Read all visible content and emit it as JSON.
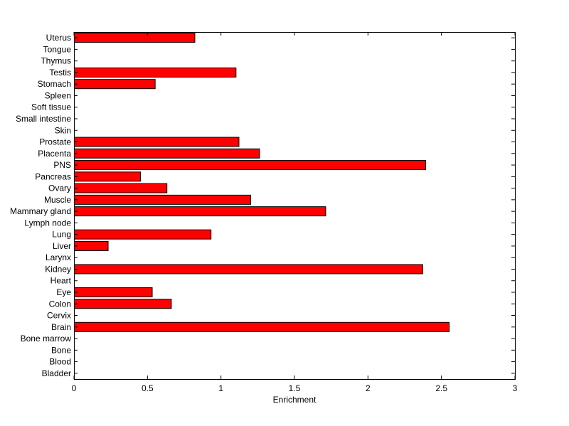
{
  "chart_data": {
    "type": "bar",
    "orientation": "horizontal",
    "title": "",
    "xlabel": "Enrichment",
    "ylabel": "",
    "xlim": [
      0,
      3
    ],
    "xticks": [
      0,
      0.5,
      1,
      1.5,
      2,
      2.5,
      3
    ],
    "xtick_labels": [
      "0",
      "0.5",
      "1",
      "1.5",
      "2",
      "2.5",
      "3"
    ],
    "grid": false,
    "legend": "none",
    "bar_color": "#ff0000",
    "bar_edge_color": "#000000",
    "categories": [
      "Bladder",
      "Blood",
      "Bone",
      "Bone marrow",
      "Brain",
      "Cervix",
      "Colon",
      "Eye",
      "Heart",
      "Kidney",
      "Larynx",
      "Liver",
      "Lung",
      "Lymph node",
      "Mammary gland",
      "Muscle",
      "Ovary",
      "Pancreas",
      "PNS",
      "Placenta",
      "Prostate",
      "Skin",
      "Small intestine",
      "Soft tissue",
      "Spleen",
      "Stomach",
      "Testis",
      "Thymus",
      "Tongue",
      "Uterus"
    ],
    "values": [
      0,
      0,
      0,
      0,
      2.55,
      0,
      0.66,
      0.53,
      0,
      2.37,
      0,
      0.23,
      0.93,
      0,
      1.71,
      1.2,
      0.63,
      0.45,
      2.39,
      1.26,
      1.12,
      0,
      0,
      0,
      0,
      0.55,
      1.1,
      0,
      0,
      0.82
    ]
  }
}
